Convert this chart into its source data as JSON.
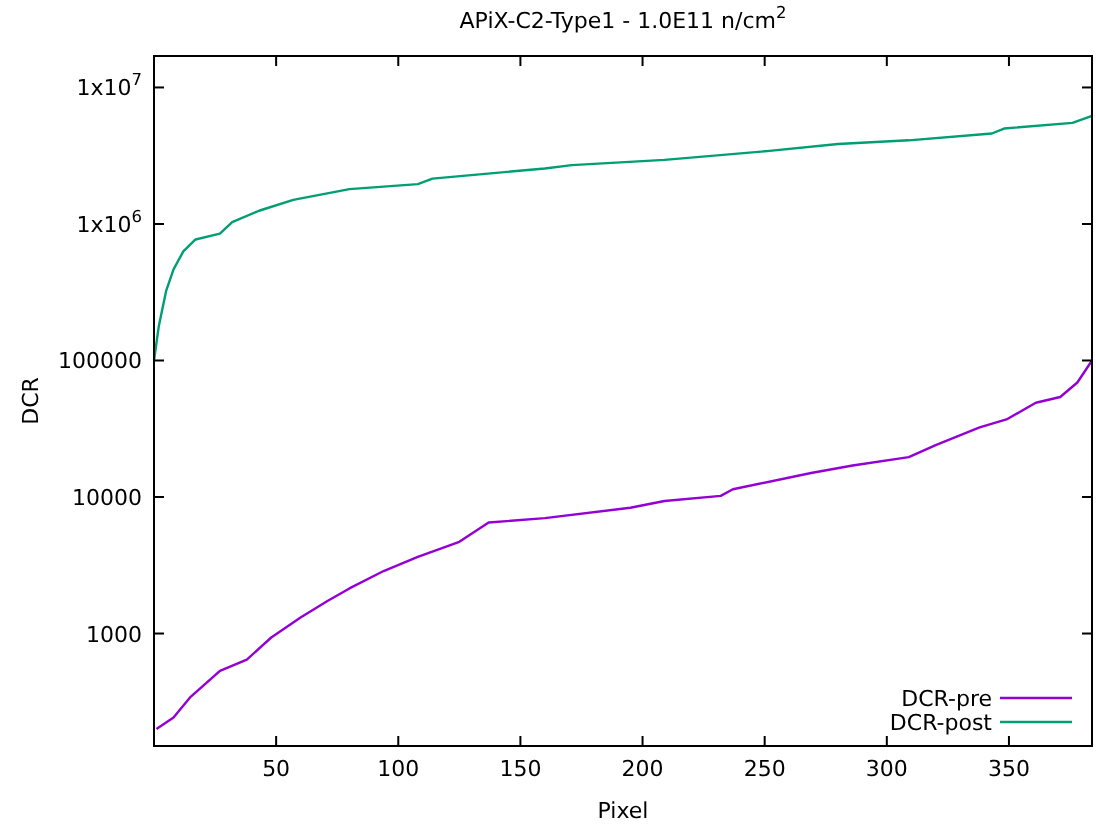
{
  "chart_data": {
    "type": "line",
    "title": "APiX-C2-Type1 - 1.0E11 n/cm$^{2}$",
    "xlabel": "Pixel",
    "ylabel": "DCR",
    "log": "y",
    "grid": false,
    "legend": "bottom right",
    "marker": "none",
    "line_style": "solid",
    "xlim": [
      0,
      384
    ],
    "xticks": [
      50,
      100,
      150,
      200,
      250,
      300,
      350
    ],
    "ylim": [
      150,
      17000000
    ],
    "yticks": [
      {
        "value": 1000,
        "label": "1000"
      },
      {
        "value": 10000,
        "label": "10000"
      },
      {
        "value": 100000,
        "label": "100000"
      },
      {
        "value": 1000000,
        "label": "1x10$^{6}$"
      },
      {
        "value": 10000000,
        "label": "1x10$^{7}$"
      }
    ],
    "series": [
      {
        "name": "DCR-pre",
        "color": "#9400d3",
        "x": [
          1,
          8,
          15,
          27,
          38,
          48,
          60,
          71,
          80,
          94,
          108,
          125,
          137,
          160,
          195,
          209,
          232,
          237,
          269,
          286,
          309,
          320,
          338,
          349,
          361,
          371,
          378,
          384
        ],
        "values": [
          200,
          243,
          344,
          532,
          645,
          935,
          1310,
          1730,
          2140,
          2870,
          3640,
          4700,
          6500,
          7000,
          8350,
          9350,
          10200,
          11400,
          15000,
          17000,
          19600,
          24000,
          32400,
          37000,
          49000,
          54000,
          69000,
          100000
        ]
      },
      {
        "name": "DCR-post",
        "color": "#009e73",
        "x": [
          0,
          2,
          5,
          8,
          12,
          17,
          27,
          32,
          43,
          57,
          80,
          108,
          114,
          160,
          171,
          209,
          252,
          280,
          309,
          343,
          348,
          376,
          384
        ],
        "values": [
          100000,
          180000,
          325000,
          465000,
          630000,
          770000,
          850000,
          1030000,
          1250000,
          1500000,
          1800000,
          1960000,
          2150000,
          2550000,
          2700000,
          2950000,
          3430000,
          3850000,
          4100000,
          4600000,
          5000000,
          5500000,
          6200000
        ]
      }
    ]
  }
}
